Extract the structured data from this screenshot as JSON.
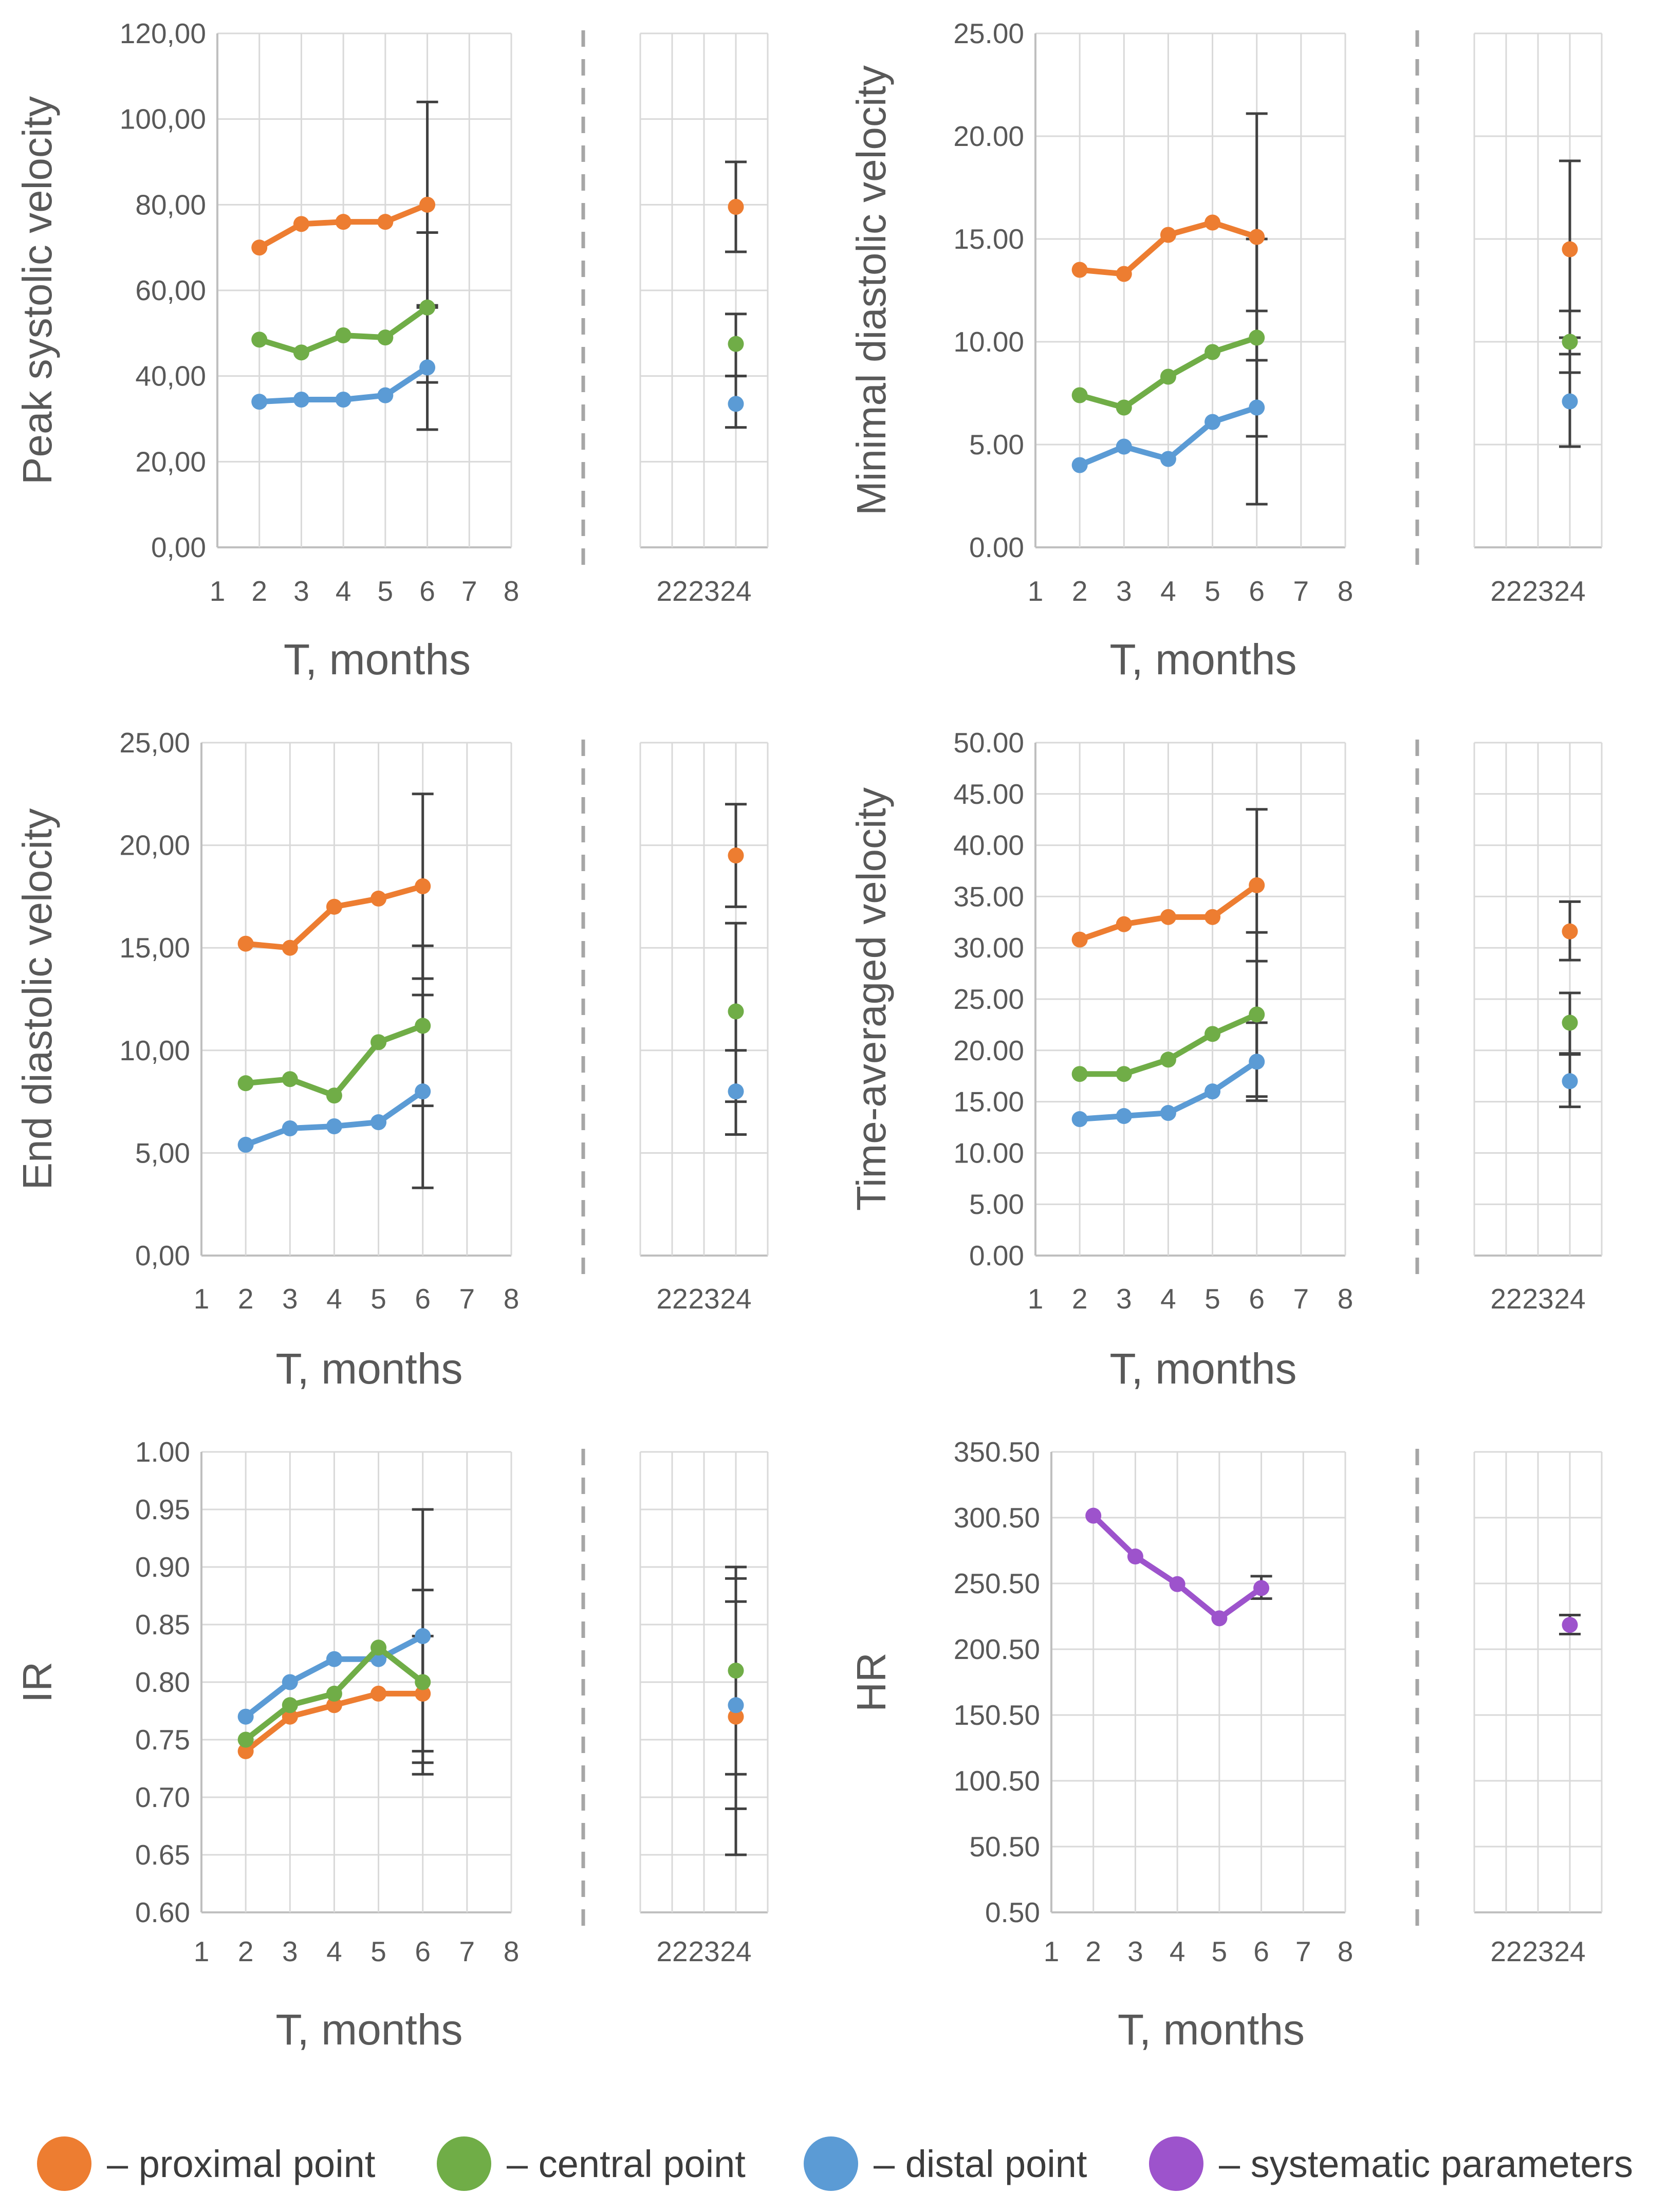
{
  "figure": {
    "background": "#FFFFFF"
  },
  "colors": {
    "proximal": "#ED7D31",
    "central": "#70AD47",
    "distal": "#5B9BD5",
    "systematic": "#9D53CC",
    "axis_text": "#595959",
    "gridline": "#D9D9D9",
    "axis_line": "#BFBFBF",
    "error_bar": "#404040",
    "separator": "#A6A6A6",
    "legend_text": "#3C3C3C"
  },
  "legend": {
    "items": [
      {
        "key": "proximal",
        "label": "– proximal point"
      },
      {
        "key": "central",
        "label": "– central point"
      },
      {
        "key": "distal",
        "label": "– distal point"
      },
      {
        "key": "systematic",
        "label": "– systematic parameters"
      }
    ]
  },
  "chart_data": [
    {
      "type": "line",
      "y_axis_title": "Peak systolic velocity",
      "x_axis_title": "T, months",
      "ylim": [
        0,
        120
      ],
      "ytick_labels": [
        "0,00",
        "20,00",
        "40,00",
        "60,00",
        "80,00",
        "100,00",
        "120,00"
      ],
      "xtick_labels_main": [
        "1",
        "2",
        "3",
        "4",
        "5",
        "6",
        "7",
        "8"
      ],
      "xtick_labels_break": [
        "22",
        "23",
        "24"
      ],
      "x": [
        2,
        3,
        4,
        5,
        6
      ],
      "series": [
        {
          "name": "proximal point",
          "color_key": "proximal",
          "z": 1,
          "values": [
            70,
            75.5,
            76,
            76,
            80
          ],
          "value_24": 79.5,
          "error_bars": [
            {
              "x": 6,
              "plus": 24,
              "minus": 24
            },
            {
              "x": 24,
              "plus": 10.5,
              "minus": 10.5
            }
          ]
        },
        {
          "name": "central point",
          "color_key": "central",
          "z": 3,
          "values": [
            48.5,
            45.5,
            49.5,
            49,
            56
          ],
          "value_24": 47.5,
          "error_bars": [
            {
              "x": 6,
              "plus": 17.5,
              "minus": 17.5
            },
            {
              "x": 24,
              "plus": 7,
              "minus": 7.5
            }
          ]
        },
        {
          "name": "distal point",
          "color_key": "distal",
          "z": 2,
          "values": [
            34,
            34.5,
            34.5,
            35.5,
            42
          ],
          "value_24": 33.5,
          "error_bars": [
            {
              "x": 6,
              "plus": 14.5,
              "minus": 14.5
            },
            {
              "x": 24,
              "plus": 6.5,
              "minus": 5.5
            }
          ]
        }
      ]
    },
    {
      "type": "line",
      "y_axis_title": "Minimal diastolic velocity",
      "x_axis_title": "T, months",
      "ylim": [
        0,
        25
      ],
      "ytick_labels": [
        "0.00",
        "5.00",
        "10.00",
        "15.00",
        "20.00",
        "25.00"
      ],
      "xtick_labels_main": [
        "1",
        "2",
        "3",
        "4",
        "5",
        "6",
        "7",
        "8"
      ],
      "xtick_labels_break": [
        "22",
        "23",
        "24"
      ],
      "x": [
        2,
        3,
        4,
        5,
        6
      ],
      "series": [
        {
          "name": "proximal point",
          "color_key": "proximal",
          "z": 1,
          "values": [
            13.5,
            13.3,
            15.2,
            15.8,
            15.1
          ],
          "value_24": 14.5,
          "error_bars": [
            {
              "x": 6,
              "plus": 6,
              "minus": 6
            },
            {
              "x": 24,
              "plus": 4.3,
              "minus": 4.3
            }
          ]
        },
        {
          "name": "central point",
          "color_key": "central",
          "z": 3,
          "values": [
            7.4,
            6.8,
            8.3,
            9.5,
            10.2
          ],
          "value_24": 10,
          "error_bars": [
            {
              "x": 6,
              "plus": 4.8,
              "minus": 4.8
            },
            {
              "x": 24,
              "plus": 1.5,
              "minus": 1.5
            }
          ]
        },
        {
          "name": "distal point",
          "color_key": "distal",
          "z": 2,
          "values": [
            4,
            4.9,
            4.3,
            6.1,
            6.8
          ],
          "value_24": 7.1,
          "error_bars": [
            {
              "x": 6,
              "plus": 4.7,
              "minus": 4.7
            },
            {
              "x": 24,
              "plus": 2.3,
              "minus": 2.2
            }
          ]
        }
      ]
    },
    {
      "type": "line",
      "y_axis_title": "End diastolic velocity",
      "x_axis_title": "T, months",
      "ylim": [
        0,
        25
      ],
      "ytick_labels": [
        "0,00",
        "5,00",
        "10,00",
        "15,00",
        "20,00",
        "25,00"
      ],
      "xtick_labels_main": [
        "1",
        "2",
        "3",
        "4",
        "5",
        "6",
        "7",
        "8"
      ],
      "xtick_labels_break": [
        "22",
        "23",
        "24"
      ],
      "x": [
        2,
        3,
        4,
        5,
        6
      ],
      "series": [
        {
          "name": "proximal point",
          "color_key": "proximal",
          "z": 1,
          "values": [
            15.2,
            15,
            17,
            17.4,
            18
          ],
          "value_24": 19.5,
          "error_bars": [
            {
              "x": 6,
              "plus": 4.5,
              "minus": 4.5
            },
            {
              "x": 24,
              "plus": 2.5,
              "minus": 2.5
            }
          ]
        },
        {
          "name": "central point",
          "color_key": "central",
          "z": 3,
          "values": [
            8.4,
            8.6,
            7.8,
            10.4,
            11.2
          ],
          "value_24": 11.9,
          "error_bars": [
            {
              "x": 6,
              "plus": 3.9,
              "minus": 3.9
            },
            {
              "x": 24,
              "plus": 4.3,
              "minus": 4.4
            }
          ]
        },
        {
          "name": "distal point",
          "color_key": "distal",
          "z": 2,
          "values": [
            5.4,
            6.2,
            6.3,
            6.5,
            8
          ],
          "value_24": 8,
          "error_bars": [
            {
              "x": 6,
              "plus": 4.7,
              "minus": 4.7
            },
            {
              "x": 24,
              "plus": 2,
              "minus": 2.1
            }
          ]
        }
      ]
    },
    {
      "type": "line",
      "y_axis_title": "Time-averaged velocity",
      "x_axis_title": "T, months",
      "ylim": [
        0,
        50
      ],
      "ytick_labels": [
        "0.00",
        "5.00",
        "10.00",
        "15.00",
        "20.00",
        "25.00",
        "30.00",
        "35.00",
        "40.00",
        "45.00",
        "50.00"
      ],
      "xtick_labels_main": [
        "1",
        "2",
        "3",
        "4",
        "5",
        "6",
        "7",
        "8"
      ],
      "xtick_labels_break": [
        "22",
        "23",
        "24"
      ],
      "x": [
        2,
        3,
        4,
        5,
        6
      ],
      "series": [
        {
          "name": "proximal point",
          "color_key": "proximal",
          "z": 1,
          "values": [
            30.8,
            32.3,
            33,
            33,
            36.1
          ],
          "value_24": 31.6,
          "error_bars": [
            {
              "x": 6,
              "plus": 7.4,
              "minus": 7.4
            },
            {
              "x": 24,
              "plus": 2.9,
              "minus": 2.8
            }
          ]
        },
        {
          "name": "central point",
          "color_key": "central",
          "z": 3,
          "values": [
            17.7,
            17.7,
            19.1,
            21.6,
            23.5
          ],
          "value_24": 22.7,
          "error_bars": [
            {
              "x": 6,
              "plus": 8,
              "minus": 8
            },
            {
              "x": 24,
              "plus": 2.9,
              "minus": 3
            }
          ]
        },
        {
          "name": "distal point",
          "color_key": "distal",
          "z": 2,
          "values": [
            13.3,
            13.6,
            13.9,
            16,
            18.9
          ],
          "value_24": 17,
          "error_bars": [
            {
              "x": 6,
              "plus": 3.8,
              "minus": 3.8
            },
            {
              "x": 24,
              "plus": 2.6,
              "minus": 2.5
            }
          ]
        }
      ]
    },
    {
      "type": "line",
      "y_axis_title": "IR",
      "x_axis_title": "T, months",
      "ylim": [
        0.6,
        1
      ],
      "ytick_labels": [
        "0.60",
        "0.65",
        "0.70",
        "0.75",
        "0.80",
        "0.85",
        "0.90",
        "0.95",
        "1.00"
      ],
      "xtick_labels_main": [
        "1",
        "2",
        "3",
        "4",
        "5",
        "6",
        "7",
        "8"
      ],
      "xtick_labels_break": [
        "22",
        "23",
        "24"
      ],
      "x": [
        2,
        3,
        4,
        5,
        6
      ],
      "series": [
        {
          "name": "proximal point",
          "color_key": "proximal",
          "z": 1,
          "values": [
            0.74,
            0.77,
            0.78,
            0.79,
            0.79
          ],
          "value_24": 0.77,
          "error_bars": [
            {
              "x": 6,
              "plus": 0.05,
              "minus": 0.05
            },
            {
              "x": 24,
              "plus": 0.12,
              "minus": 0.12
            }
          ]
        },
        {
          "name": "central point",
          "color_key": "central",
          "z": 3,
          "values": [
            0.75,
            0.78,
            0.79,
            0.83,
            0.8
          ],
          "value_24": 0.81,
          "error_bars": [
            {
              "x": 6,
              "plus": 0.08,
              "minus": 0.08
            },
            {
              "x": 24,
              "plus": 0.09,
              "minus": 0.09
            }
          ]
        },
        {
          "name": "distal point",
          "color_key": "distal",
          "z": 2,
          "values": [
            0.77,
            0.8,
            0.82,
            0.82,
            0.84
          ],
          "value_24": 0.78,
          "error_bars": [
            {
              "x": 6,
              "plus": 0.11,
              "minus": 0.11
            },
            {
              "x": 24,
              "plus": 0.09,
              "minus": 0.09
            }
          ]
        }
      ]
    },
    {
      "type": "line",
      "y_axis_title": "HR",
      "x_axis_title": "T, months",
      "ylim": [
        0.5,
        350.5
      ],
      "ytick_labels": [
        "0.50",
        "50.50",
        "100.50",
        "150.50",
        "200.50",
        "250.50",
        "300.50",
        "350.50"
      ],
      "xtick_labels_main": [
        "1",
        "2",
        "3",
        "4",
        "5",
        "6",
        "7",
        "8"
      ],
      "xtick_labels_break": [
        "22",
        "23",
        "24"
      ],
      "x": [
        2,
        3,
        4,
        5,
        6
      ],
      "series": [
        {
          "name": "systematic parameters",
          "color_key": "systematic",
          "z": 1,
          "values": [
            302,
            271,
            250,
            224,
            247
          ],
          "value_24": 219,
          "error_bars": [
            {
              "x": 6,
              "plus": 9,
              "minus": 8
            },
            {
              "x": 24,
              "plus": 7.5,
              "minus": 7
            }
          ]
        }
      ]
    }
  ]
}
